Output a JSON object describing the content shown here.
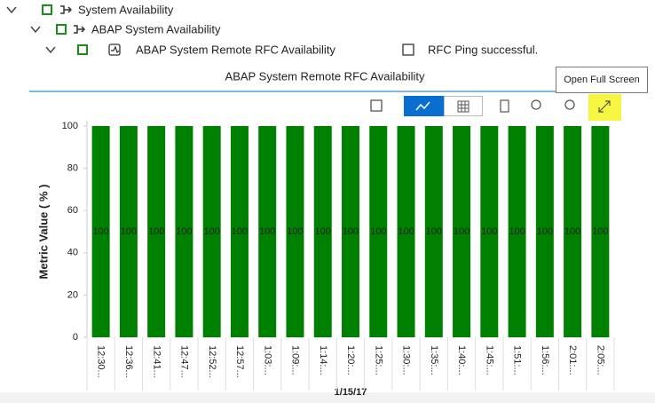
{
  "tree": [
    {
      "label": "System Availability"
    },
    {
      "label": "ABAP System Availability"
    },
    {
      "label": "ABAP System Remote RFC Availability",
      "status": "RFC Ping successful."
    }
  ],
  "tooltip": "Open Full Screen",
  "chart_data": {
    "type": "bar",
    "title": "ABAP System Remote RFC Availability",
    "x_label": "1/15/17",
    "y_label": "Metric Value ( % )",
    "categories": [
      "12:30...",
      "12:36...",
      "12:41...",
      "12:47...",
      "12:52...",
      "12:57...",
      "1:03:...",
      "1:09:...",
      "1:14:...",
      "1:20:...",
      "1:25:...",
      "1:30:...",
      "1:35:...",
      "1:40:...",
      "1:45:...",
      "1:51:...",
      "1:56:...",
      "2:01:...",
      "2:05:..."
    ],
    "values": [
      100,
      100,
      100,
      100,
      100,
      100,
      100,
      100,
      100,
      100,
      100,
      100,
      100,
      100,
      100,
      100,
      100,
      100,
      100
    ],
    "color": "#008000",
    "ylim": [
      0,
      100
    ],
    "yticks": [
      0,
      20,
      40,
      60,
      80,
      100
    ],
    "grid": false
  }
}
